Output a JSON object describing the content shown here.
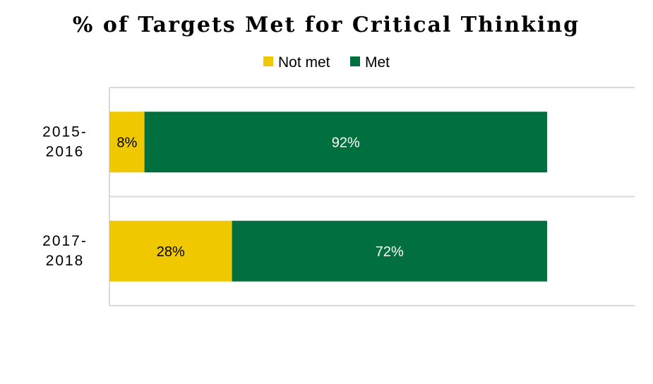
{
  "chart_data": {
    "type": "bar",
    "orientation": "horizontal",
    "stacked": true,
    "title": "% of Targets Met for Critical Thinking",
    "categories": [
      [
        "2015-",
        "2016"
      ],
      [
        "2017-",
        "2018"
      ]
    ],
    "series": [
      {
        "name": "Not met",
        "color": "#F0C800",
        "values": [
          8,
          28
        ],
        "labels": [
          "8%",
          "28%"
        ],
        "label_color": "#000000"
      },
      {
        "name": "Met",
        "color": "#02703E",
        "values": [
          92,
          72
        ],
        "labels": [
          "92%",
          "72%"
        ],
        "label_color": "#ffffff"
      }
    ],
    "xlim": [
      0,
      120
    ],
    "legend_position": "top",
    "grid": true
  }
}
